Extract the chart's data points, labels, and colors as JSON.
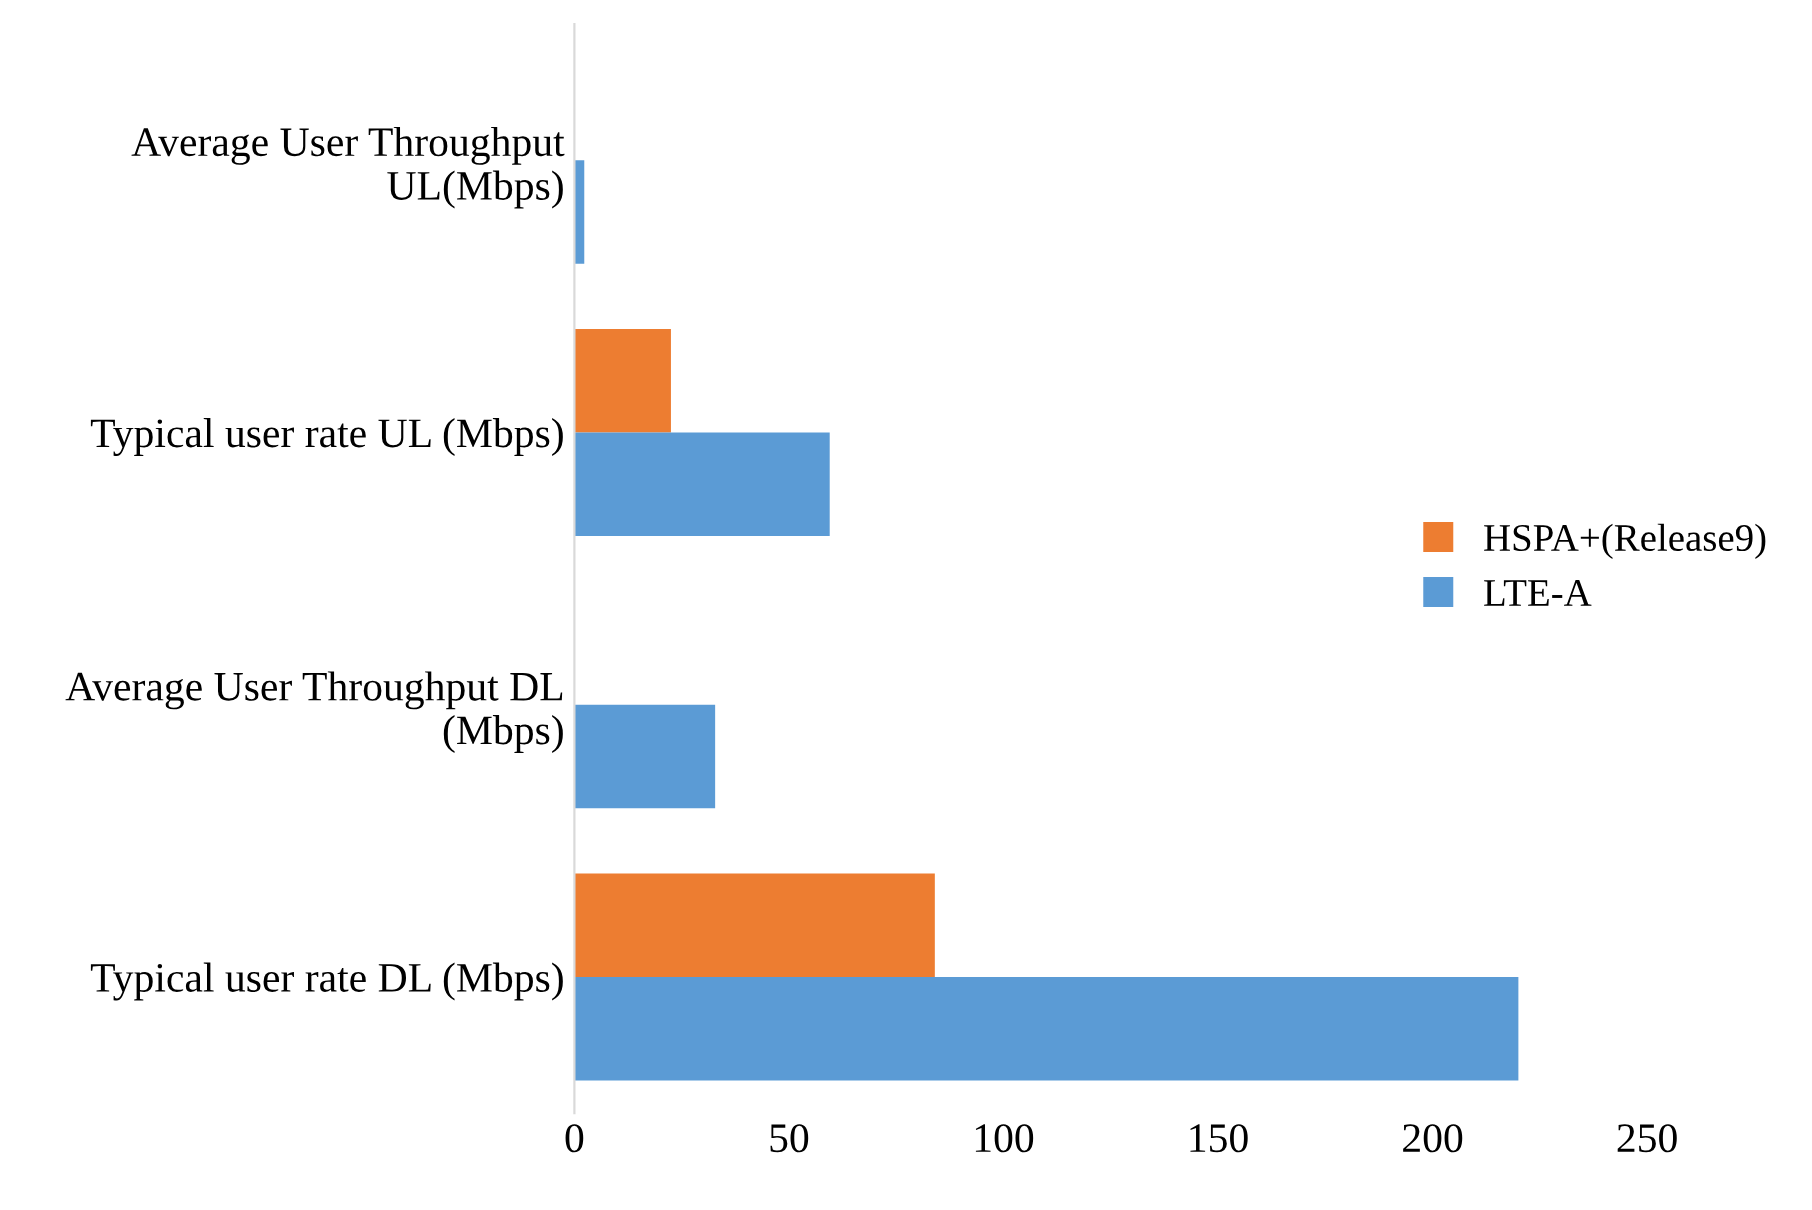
{
  "chart_data": {
    "type": "bar",
    "orientation": "horizontal",
    "categories": [
      "Average User Throughput\nUL(Mbps)",
      "Typical user rate UL (Mbps)",
      "Average User Throughput DL\n(Mbps)",
      "Typical user rate DL (Mbps)"
    ],
    "series": [
      {
        "name": "HSPA+(Release9)",
        "color": "#ed7d31",
        "values": [
          null,
          22.5,
          null,
          84
        ]
      },
      {
        "name": "LTE-A",
        "color": "#5b9bd5",
        "values": [
          2.3,
          59.5,
          32.8,
          220
        ]
      }
    ],
    "xlim": [
      0,
      250
    ],
    "xticks": [
      0,
      50,
      100,
      150,
      200,
      250
    ],
    "grid": false,
    "legend": "right"
  }
}
